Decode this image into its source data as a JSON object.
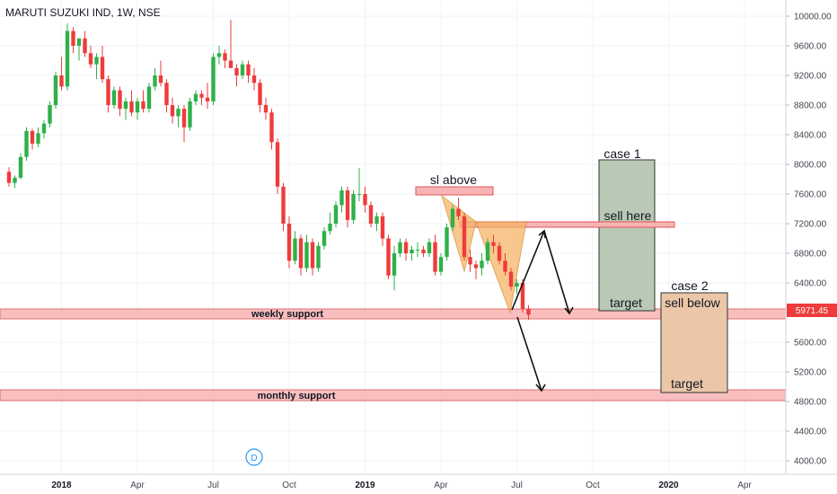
{
  "header": {
    "symbol_title": "MARUTI SUZUKI IND, 1W, NSE"
  },
  "colors": {
    "up": "#26a69a",
    "upBody": "#2fb04a",
    "down": "#ef3b3b",
    "grid": "#f0f3fa",
    "zone": "#f8b4b4",
    "zoneEdge": "#e05555",
    "case1": "#b9c9b5",
    "case2": "#ebc7a8",
    "pattern": "#f6b567"
  },
  "chart_data": {
    "type": "candlestick",
    "title": "MARUTI SUZUKI IND, 1W, NSE",
    "ylim": [
      3800,
      10200
    ],
    "y_ticks": [
      "10000.00",
      "9600.00",
      "9200.00",
      "8800.00",
      "8400.00",
      "8000.00",
      "7600.00",
      "7200.00",
      "6800.00",
      "6400.00",
      "6000.00",
      "5600.00",
      "5200.00",
      "4800.00",
      "4400.00",
      "4000.00"
    ],
    "x_ticks": [
      {
        "label": "2018",
        "bold": true,
        "week": 10
      },
      {
        "label": "Apr",
        "bold": false,
        "week": 23
      },
      {
        "label": "Jul",
        "bold": false,
        "week": 36
      },
      {
        "label": "Oct",
        "bold": false,
        "week": 49
      },
      {
        "label": "2019",
        "bold": true,
        "week": 62
      },
      {
        "label": "Apr",
        "bold": false,
        "week": 75
      },
      {
        "label": "Jul",
        "bold": false,
        "week": 88
      },
      {
        "label": "Oct",
        "bold": false,
        "week": 101
      },
      {
        "label": "2020",
        "bold": true,
        "week": 114
      },
      {
        "label": "Apr",
        "bold": false,
        "week": 127
      }
    ],
    "last_price": "5971.45",
    "candles": [
      [
        7900,
        7960,
        7700,
        7750
      ],
      [
        7750,
        7850,
        7680,
        7820
      ],
      [
        7820,
        8150,
        7800,
        8100
      ],
      [
        8100,
        8500,
        8050,
        8450
      ],
      [
        8450,
        8480,
        8200,
        8280
      ],
      [
        8280,
        8500,
        8230,
        8420
      ],
      [
        8420,
        8600,
        8350,
        8550
      ],
      [
        8550,
        8850,
        8500,
        8800
      ],
      [
        8800,
        9250,
        8750,
        9200
      ],
      [
        9200,
        9450,
        9000,
        9050
      ],
      [
        9050,
        9900,
        9000,
        9800
      ],
      [
        9800,
        9850,
        9500,
        9600
      ],
      [
        9600,
        9700,
        9400,
        9700
      ],
      [
        9700,
        9800,
        9450,
        9500
      ],
      [
        9500,
        9600,
        9300,
        9350
      ],
      [
        9350,
        9500,
        9150,
        9450
      ],
      [
        9450,
        9600,
        9100,
        9150
      ],
      [
        9150,
        9200,
        8700,
        8800
      ],
      [
        8800,
        9050,
        8750,
        9000
      ],
      [
        9000,
        9050,
        8650,
        8750
      ],
      [
        8750,
        8900,
        8600,
        8850
      ],
      [
        8850,
        9000,
        8650,
        8700
      ],
      [
        8700,
        8900,
        8600,
        8850
      ],
      [
        8850,
        9000,
        8700,
        8750
      ],
      [
        8750,
        9100,
        8700,
        9050
      ],
      [
        9050,
        9300,
        9000,
        9200
      ],
      [
        9200,
        9400,
        9050,
        9100
      ],
      [
        9100,
        9150,
        8700,
        8800
      ],
      [
        8800,
        8900,
        8550,
        8650
      ],
      [
        8650,
        8800,
        8500,
        8750
      ],
      [
        8750,
        8800,
        8300,
        8500
      ],
      [
        8500,
        8900,
        8450,
        8850
      ],
      [
        8850,
        9000,
        8800,
        8950
      ],
      [
        8950,
        9000,
        8800,
        8900
      ],
      [
        8900,
        9100,
        8750,
        8850
      ],
      [
        8850,
        9500,
        8800,
        9450
      ],
      [
        9450,
        9600,
        9350,
        9500
      ],
      [
        9500,
        9550,
        9300,
        9400
      ],
      [
        9400,
        9950,
        9300,
        9300
      ],
      [
        9300,
        9350,
        9050,
        9200
      ],
      [
        9200,
        9400,
        9150,
        9350
      ],
      [
        9350,
        9400,
        9100,
        9200
      ],
      [
        9200,
        9300,
        9000,
        9100
      ],
      [
        9100,
        9150,
        8700,
        8800
      ],
      [
        8800,
        8900,
        8600,
        8700
      ],
      [
        8700,
        8750,
        8200,
        8300
      ],
      [
        8300,
        8350,
        7600,
        7700
      ],
      [
        7700,
        7750,
        7100,
        7200
      ],
      [
        7200,
        7300,
        6600,
        6700
      ],
      [
        6700,
        7100,
        6650,
        7000
      ],
      [
        7000,
        7050,
        6500,
        6600
      ],
      [
        6600,
        7050,
        6550,
        6950
      ],
      [
        6950,
        7000,
        6500,
        6600
      ],
      [
        6600,
        6950,
        6550,
        6900
      ],
      [
        6900,
        7150,
        6850,
        7100
      ],
      [
        7100,
        7350,
        7050,
        7200
      ],
      [
        7200,
        7500,
        7150,
        7450
      ],
      [
        7450,
        7700,
        7350,
        7650
      ],
      [
        7650,
        7700,
        7150,
        7250
      ],
      [
        7250,
        7650,
        7200,
        7600
      ],
      [
        7600,
        7950,
        7500,
        7600
      ],
      [
        7600,
        7700,
        7350,
        7450
      ],
      [
        7450,
        7500,
        7150,
        7200
      ],
      [
        7200,
        7350,
        7100,
        7300
      ],
      [
        7300,
        7350,
        6900,
        7000
      ],
      [
        7000,
        7050,
        6450,
        6500
      ],
      [
        6500,
        6900,
        6300,
        6800
      ],
      [
        6800,
        7000,
        6750,
        6950
      ],
      [
        6950,
        7000,
        6700,
        6800
      ],
      [
        6800,
        6900,
        6700,
        6850
      ],
      [
        6850,
        6950,
        6750,
        6850
      ],
      [
        6850,
        6900,
        6750,
        6800
      ],
      [
        6800,
        7000,
        6750,
        6950
      ],
      [
        6950,
        7050,
        6500,
        6550
      ],
      [
        6550,
        6800,
        6500,
        6750
      ],
      [
        6750,
        7200,
        6700,
        7150
      ],
      [
        7150,
        7450,
        7100,
        7400
      ],
      [
        7400,
        7550,
        7250,
        7300
      ],
      [
        7300,
        7350,
        6700,
        6750
      ],
      [
        6750,
        6850,
        6550,
        6650
      ],
      [
        6650,
        6700,
        6450,
        6600
      ],
      [
        6600,
        6800,
        6500,
        6700
      ],
      [
        6700,
        7000,
        6650,
        6950
      ],
      [
        6950,
        7050,
        6800,
        6900
      ],
      [
        6900,
        6950,
        6650,
        6700
      ],
      [
        6700,
        6800,
        6500,
        6550
      ],
      [
        6550,
        6600,
        6300,
        6350
      ],
      [
        6350,
        6450,
        6250,
        6400
      ],
      [
        6400,
        6450,
        6000,
        6050
      ],
      [
        6050,
        6100,
        5900,
        5971
      ]
    ]
  },
  "annotations": {
    "sl_label": "sl above",
    "case1_label": "case 1",
    "sell_here_label": "sell here",
    "case1_target_label": "target",
    "case2_label": "case 2",
    "sell_below_label": "sell below",
    "case2_target_label": "target",
    "weekly_support_label": "weekly support",
    "monthly_support_label": "monthly support",
    "d_marker": "D"
  }
}
